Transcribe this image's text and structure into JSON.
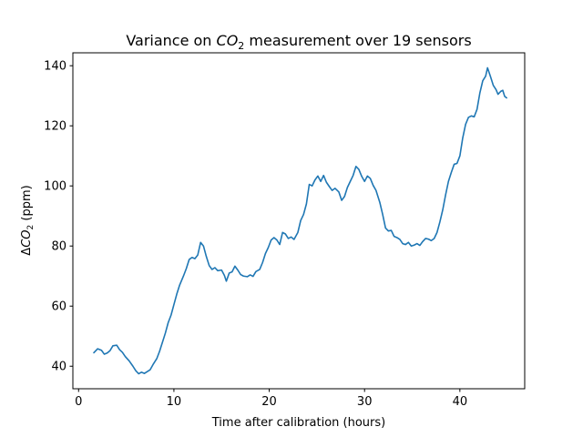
{
  "chart_data": {
    "type": "line",
    "title": {
      "prefix": "Variance on ",
      "var": "CO",
      "sub": "2",
      "suffix": " measurement over 19 sensors"
    },
    "xlabel": "Time after calibration (hours)",
    "ylabel": {
      "prefix": "Δ",
      "var": "CO",
      "sub": "2",
      "suffix": " (ppm)"
    },
    "xlim": [
      -0.6,
      46.8
    ],
    "ylim": [
      32.5,
      144.3
    ],
    "xticks": [
      0,
      10,
      20,
      30,
      40
    ],
    "yticks": [
      40,
      60,
      80,
      100,
      120,
      140
    ],
    "grid": false,
    "series": [
      {
        "color": "#1f77b4",
        "points": [
          [
            1.6,
            44.5
          ],
          [
            2.0,
            45.8
          ],
          [
            2.4,
            45.3
          ],
          [
            2.7,
            44.0
          ],
          [
            3.0,
            44.4
          ],
          [
            3.3,
            45.2
          ],
          [
            3.6,
            46.8
          ],
          [
            4.0,
            47.0
          ],
          [
            4.3,
            45.5
          ],
          [
            4.6,
            44.6
          ],
          [
            4.9,
            43.2
          ],
          [
            5.3,
            41.8
          ],
          [
            5.7,
            40.0
          ],
          [
            6.0,
            38.5
          ],
          [
            6.3,
            37.5
          ],
          [
            6.6,
            38.0
          ],
          [
            6.9,
            37.6
          ],
          [
            7.2,
            38.2
          ],
          [
            7.5,
            38.8
          ],
          [
            7.8,
            40.5
          ],
          [
            8.2,
            42.5
          ],
          [
            8.5,
            45.0
          ],
          [
            8.8,
            48.0
          ],
          [
            9.1,
            51.0
          ],
          [
            9.4,
            54.5
          ],
          [
            9.7,
            57.0
          ],
          [
            10.0,
            60.5
          ],
          [
            10.3,
            64.0
          ],
          [
            10.6,
            67.0
          ],
          [
            11.0,
            70.0
          ],
          [
            11.3,
            72.5
          ],
          [
            11.6,
            75.5
          ],
          [
            11.9,
            76.2
          ],
          [
            12.2,
            75.8
          ],
          [
            12.5,
            77.0
          ],
          [
            12.8,
            81.2
          ],
          [
            13.1,
            80.0
          ],
          [
            13.4,
            76.5
          ],
          [
            13.7,
            73.5
          ],
          [
            14.0,
            72.2
          ],
          [
            14.3,
            72.8
          ],
          [
            14.6,
            71.8
          ],
          [
            15.0,
            72.0
          ],
          [
            15.3,
            70.2
          ],
          [
            15.5,
            68.3
          ],
          [
            15.8,
            71.0
          ],
          [
            16.1,
            71.4
          ],
          [
            16.4,
            73.3
          ],
          [
            16.7,
            72.0
          ],
          [
            17.0,
            70.5
          ],
          [
            17.3,
            70.0
          ],
          [
            17.7,
            69.8
          ],
          [
            18.0,
            70.4
          ],
          [
            18.3,
            69.9
          ],
          [
            18.6,
            71.5
          ],
          [
            19.0,
            72.2
          ],
          [
            19.3,
            74.5
          ],
          [
            19.6,
            77.5
          ],
          [
            19.9,
            79.5
          ],
          [
            20.2,
            82.0
          ],
          [
            20.5,
            82.8
          ],
          [
            20.8,
            82.0
          ],
          [
            21.1,
            80.5
          ],
          [
            21.4,
            84.5
          ],
          [
            21.7,
            84.0
          ],
          [
            22.0,
            82.5
          ],
          [
            22.3,
            83.0
          ],
          [
            22.6,
            82.2
          ],
          [
            23.0,
            84.5
          ],
          [
            23.3,
            88.5
          ],
          [
            23.6,
            90.5
          ],
          [
            23.9,
            94.0
          ],
          [
            24.2,
            100.5
          ],
          [
            24.5,
            100.0
          ],
          [
            24.8,
            102.0
          ],
          [
            25.1,
            103.3
          ],
          [
            25.4,
            101.5
          ],
          [
            25.7,
            103.5
          ],
          [
            26.0,
            101.2
          ],
          [
            26.3,
            99.8
          ],
          [
            26.6,
            98.5
          ],
          [
            26.9,
            99.2
          ],
          [
            27.3,
            98.0
          ],
          [
            27.6,
            95.2
          ],
          [
            27.9,
            96.5
          ],
          [
            28.2,
            99.5
          ],
          [
            28.5,
            101.5
          ],
          [
            28.8,
            103.5
          ],
          [
            29.1,
            106.5
          ],
          [
            29.4,
            105.5
          ],
          [
            29.7,
            103.2
          ],
          [
            30.0,
            101.5
          ],
          [
            30.3,
            103.3
          ],
          [
            30.6,
            102.5
          ],
          [
            30.9,
            100.2
          ],
          [
            31.2,
            98.5
          ],
          [
            31.6,
            94.5
          ],
          [
            31.9,
            90.5
          ],
          [
            32.2,
            86.0
          ],
          [
            32.5,
            85.0
          ],
          [
            32.8,
            85.2
          ],
          [
            33.1,
            83.2
          ],
          [
            33.4,
            82.8
          ],
          [
            33.7,
            82.2
          ],
          [
            34.0,
            80.8
          ],
          [
            34.3,
            80.5
          ],
          [
            34.6,
            81.2
          ],
          [
            34.9,
            80.0
          ],
          [
            35.2,
            80.3
          ],
          [
            35.5,
            80.8
          ],
          [
            35.8,
            80.2
          ],
          [
            36.1,
            81.5
          ],
          [
            36.4,
            82.5
          ],
          [
            36.7,
            82.3
          ],
          [
            37.0,
            81.8
          ],
          [
            37.3,
            82.5
          ],
          [
            37.6,
            84.5
          ],
          [
            37.9,
            88.0
          ],
          [
            38.2,
            92.0
          ],
          [
            38.5,
            97.0
          ],
          [
            38.8,
            101.5
          ],
          [
            39.1,
            104.5
          ],
          [
            39.4,
            107.2
          ],
          [
            39.7,
            107.5
          ],
          [
            40.0,
            110.0
          ],
          [
            40.3,
            116.0
          ],
          [
            40.6,
            120.5
          ],
          [
            40.9,
            122.8
          ],
          [
            41.2,
            123.3
          ],
          [
            41.5,
            123.0
          ],
          [
            41.8,
            125.5
          ],
          [
            42.1,
            131.0
          ],
          [
            42.4,
            135.0
          ],
          [
            42.7,
            136.5
          ],
          [
            42.9,
            139.3
          ],
          [
            43.2,
            136.5
          ],
          [
            43.5,
            133.5
          ],
          [
            43.8,
            132.0
          ],
          [
            44.0,
            130.5
          ],
          [
            44.3,
            131.5
          ],
          [
            44.5,
            131.8
          ],
          [
            44.7,
            129.8
          ],
          [
            44.9,
            129.3
          ]
        ]
      }
    ]
  }
}
